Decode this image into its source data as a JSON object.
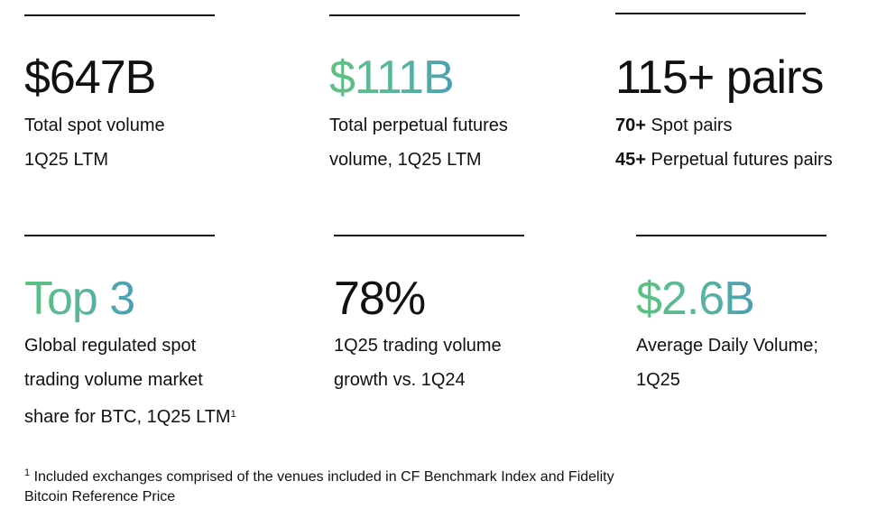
{
  "stats": {
    "spot": {
      "value": "$647B",
      "lines": [
        "Total spot volume",
        "1Q25 LTM"
      ]
    },
    "perp": {
      "value": "$111B",
      "lines": [
        "Total perpetual futures",
        "volume, 1Q25 LTM"
      ]
    },
    "pairs": {
      "value": "115+ pairs",
      "items": [
        {
          "count": "70+",
          "label": "Spot pairs"
        },
        {
          "count": "45+",
          "label": "Perpetual futures pairs"
        }
      ]
    },
    "rank": {
      "value": "Top 3",
      "lines": [
        "Global regulated spot",
        "trading volume market",
        "share for BTC, 1Q25 LTM"
      ],
      "footnote_mark": "1"
    },
    "growth": {
      "value": "78%",
      "lines": [
        "1Q25 trading volume",
        "growth vs. 1Q24"
      ]
    },
    "adv": {
      "value": "$2.6B",
      "lines": [
        "Average Daily Volume;",
        "1Q25"
      ]
    }
  },
  "footnote": {
    "mark": "1",
    "lines": [
      "Included exchanges comprised of the venues included in CF Benchmark Index and Fidelity",
      "Bitcoin Reference Price"
    ]
  },
  "colors": {
    "text": "#111111",
    "gradient_start": "#5cc27e",
    "gradient_end": "#4a9fb4"
  }
}
